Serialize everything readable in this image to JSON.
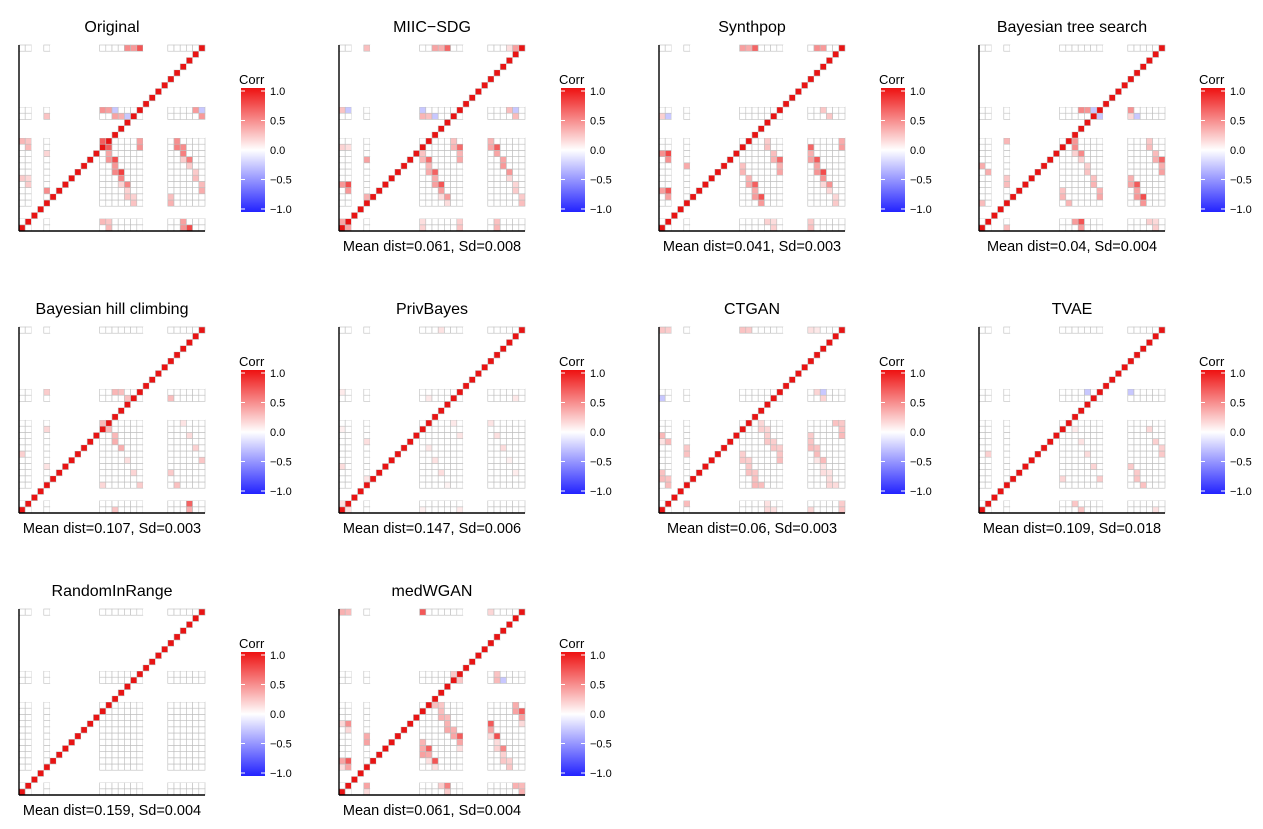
{
  "chart_data": {
    "type": "heatmap",
    "n_variables": 30,
    "color_scale": {
      "title": "Corr",
      "min": -1.0,
      "max": 1.0,
      "ticks": [
        "1.0",
        "0.5",
        "0.0",
        "−0.5",
        "−1.0"
      ],
      "tick_values": [
        1.0,
        0.5,
        0.0,
        -0.5,
        -1.0
      ],
      "colors": {
        "negative": "#2222ff",
        "zero": "#ffffff",
        "positive": "#ee1111"
      }
    },
    "empty_rows": [
      2,
      3,
      15,
      16,
      17,
      20,
      21,
      22,
      23,
      24,
      25,
      26,
      27,
      28
    ],
    "empty_cols": [
      2,
      3,
      5,
      6,
      7,
      8,
      9,
      10,
      11,
      12,
      20,
      21,
      22,
      23
    ],
    "panels": [
      {
        "title": "Original",
        "footer": "",
        "seed": 3,
        "density": 0.22,
        "strength": 0.55,
        "negative": true,
        "strong": true
      },
      {
        "title": "MIIC−SDG",
        "footer": "Mean dist=0.061, Sd=0.008",
        "seed": 5,
        "density": 0.2,
        "strength": 0.45,
        "negative": true,
        "strong": true
      },
      {
        "title": "Synthpop",
        "footer": "Mean dist=0.041, Sd=0.003",
        "seed": 7,
        "density": 0.21,
        "strength": 0.48,
        "negative": true,
        "strong": true
      },
      {
        "title": "Bayesian tree search",
        "footer": "Mean dist=0.04, Sd=0.004",
        "seed": 11,
        "density": 0.22,
        "strength": 0.5,
        "negative": true,
        "strong": true
      },
      {
        "title": "Bayesian hill climbing",
        "footer": "Mean dist=0.107, Sd=0.003",
        "seed": 13,
        "density": 0.12,
        "strength": 0.35,
        "negative": false,
        "strong": true
      },
      {
        "title": "PrivBayes",
        "footer": "Mean dist=0.147, Sd=0.006",
        "seed": 17,
        "density": 0.06,
        "strength": 0.15,
        "negative": false,
        "strong": false
      },
      {
        "title": "CTGAN",
        "footer": "Mean dist=0.06, Sd=0.003",
        "seed": 19,
        "density": 0.25,
        "strength": 0.3,
        "negative": true,
        "strong": false
      },
      {
        "title": "TVAE",
        "footer": "Mean dist=0.109, Sd=0.018",
        "seed": 23,
        "density": 0.1,
        "strength": 0.28,
        "negative": true,
        "strong": false
      },
      {
        "title": "RandomInRange",
        "footer": "Mean dist=0.159, Sd=0.004",
        "seed": 29,
        "density": 0.0,
        "strength": 0.0,
        "negative": false,
        "strong": false
      },
      {
        "title": "medWGAN",
        "footer": "Mean dist=0.061, Sd=0.004",
        "seed": 31,
        "density": 0.26,
        "strength": 0.4,
        "negative": true,
        "strong": true
      }
    ]
  }
}
